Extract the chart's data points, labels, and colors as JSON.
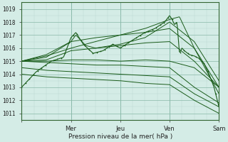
{
  "xlabel": "Pression niveau de la mer( hPa )",
  "ylim": [
    1010.5,
    1019.5
  ],
  "yticks": [
    1011,
    1012,
    1013,
    1014,
    1015,
    1016,
    1017,
    1018,
    1019
  ],
  "x_labels": [
    "",
    "Mer",
    "Jeu",
    "Ven",
    "Sam"
  ],
  "bg_color": "#d4ece6",
  "grid_minor_color": "#b8d8d0",
  "grid_major_color": "#88b8a8",
  "line_color": "#1a5c1a",
  "figsize": [
    3.2,
    2.0
  ],
  "dpi": 100
}
